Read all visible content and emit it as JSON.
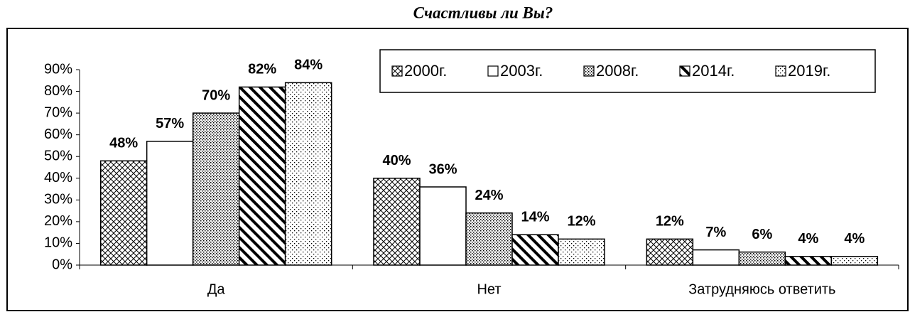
{
  "chart_data": {
    "type": "bar",
    "title": "Счастливы ли Вы?",
    "categories": [
      "Да",
      "Нет",
      "Затрудняюсь ответить"
    ],
    "series": [
      {
        "name": "2000г.",
        "color": "#000000",
        "pattern": "crosshatch",
        "values": [
          48,
          40,
          12
        ],
        "value_labels": [
          "48%",
          "40%",
          "12%"
        ]
      },
      {
        "name": "2003г.",
        "color": "#000000",
        "pattern": "none",
        "values": [
          57,
          36,
          7
        ],
        "value_labels": [
          "57%",
          "36%",
          "7%"
        ]
      },
      {
        "name": "2008г.",
        "color": "#000000",
        "pattern": "dense-dots",
        "values": [
          70,
          24,
          6
        ],
        "value_labels": [
          "70%",
          "24%",
          "6%"
        ]
      },
      {
        "name": "2014г.",
        "color": "#000000",
        "pattern": "stripes",
        "values": [
          82,
          14,
          4
        ],
        "value_labels": [
          "82%",
          "14%",
          "4%"
        ]
      },
      {
        "name": "2019г.",
        "color": "#000000",
        "pattern": "sparse-dots",
        "values": [
          84,
          12,
          4
        ],
        "value_labels": [
          "84%",
          "12%",
          "4%"
        ]
      }
    ],
    "ylim": [
      0,
      90
    ],
    "yticks": [
      {
        "value": 0,
        "label": "0%"
      },
      {
        "value": 10,
        "label": "10%"
      },
      {
        "value": 20,
        "label": "20%"
      },
      {
        "value": 30,
        "label": "30%"
      },
      {
        "value": 40,
        "label": "40%"
      },
      {
        "value": 50,
        "label": "50%"
      },
      {
        "value": 60,
        "label": "60%"
      },
      {
        "value": 70,
        "label": "70%"
      },
      {
        "value": 80,
        "label": "80%"
      },
      {
        "value": 90,
        "label": "90%"
      }
    ],
    "grid": false,
    "legend": "top-right"
  }
}
